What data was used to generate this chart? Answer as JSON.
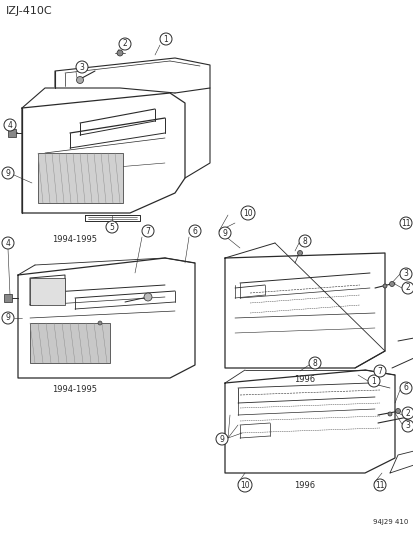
{
  "title": "IZJ-410C",
  "background_color": "#ffffff",
  "diagram_color": "#2a2a2a",
  "fig_width": 4.14,
  "fig_height": 5.33,
  "dpi": 100,
  "labels": {
    "top_left_year": "1994-1995",
    "top_right_year": "1996",
    "bottom_left_year": "1994-1995",
    "bottom_right_year": "1996",
    "catalog_num": "94J29 410"
  }
}
